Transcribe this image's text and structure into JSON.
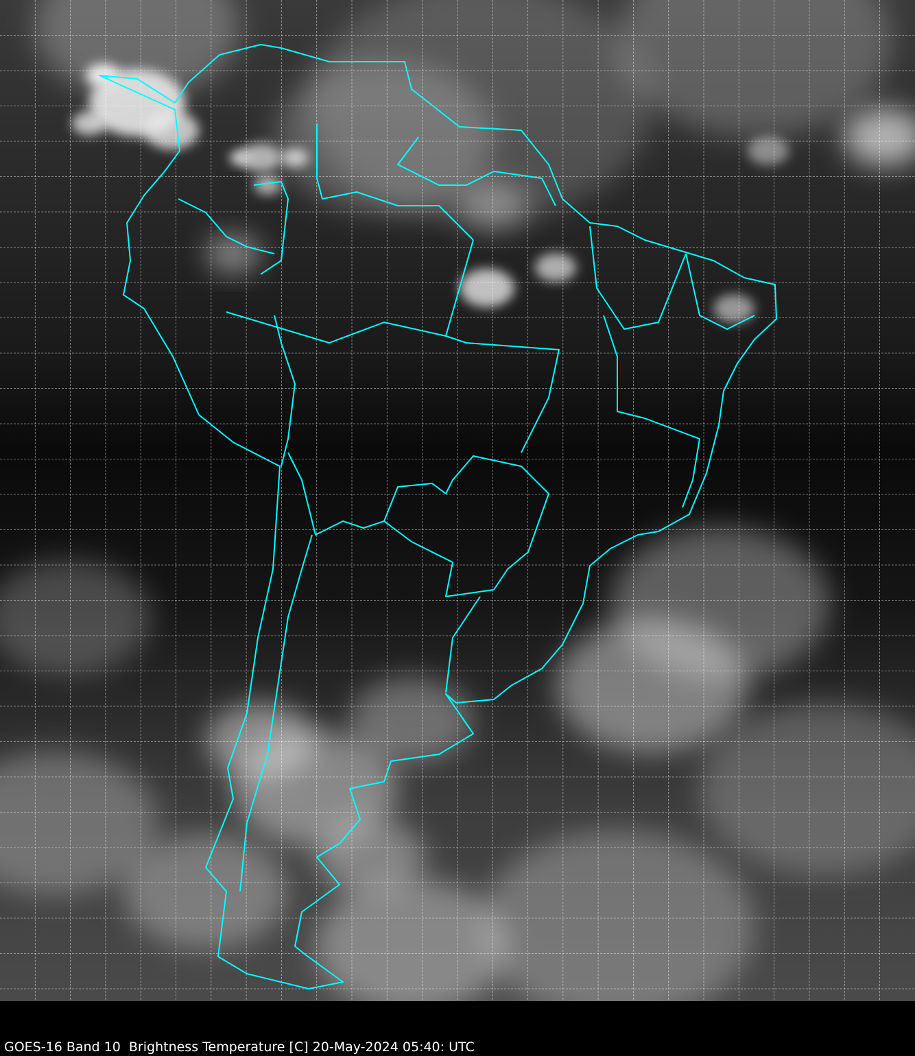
{
  "caption": "GOES-16 Band 10  Brightness Temperature [C] 20-May-2024 05:40: UTC",
  "colors": {
    "background_dark": "#0a0a0a",
    "cloud_bright": "#e8e8e8",
    "coastline": "#00ffff",
    "grid": "#ffffff",
    "caption_bar": "#000000"
  },
  "map": {
    "grid": true,
    "grid_style": "dashed",
    "colormap": "grayscale",
    "boundaries": "coastlines and political borders"
  }
}
